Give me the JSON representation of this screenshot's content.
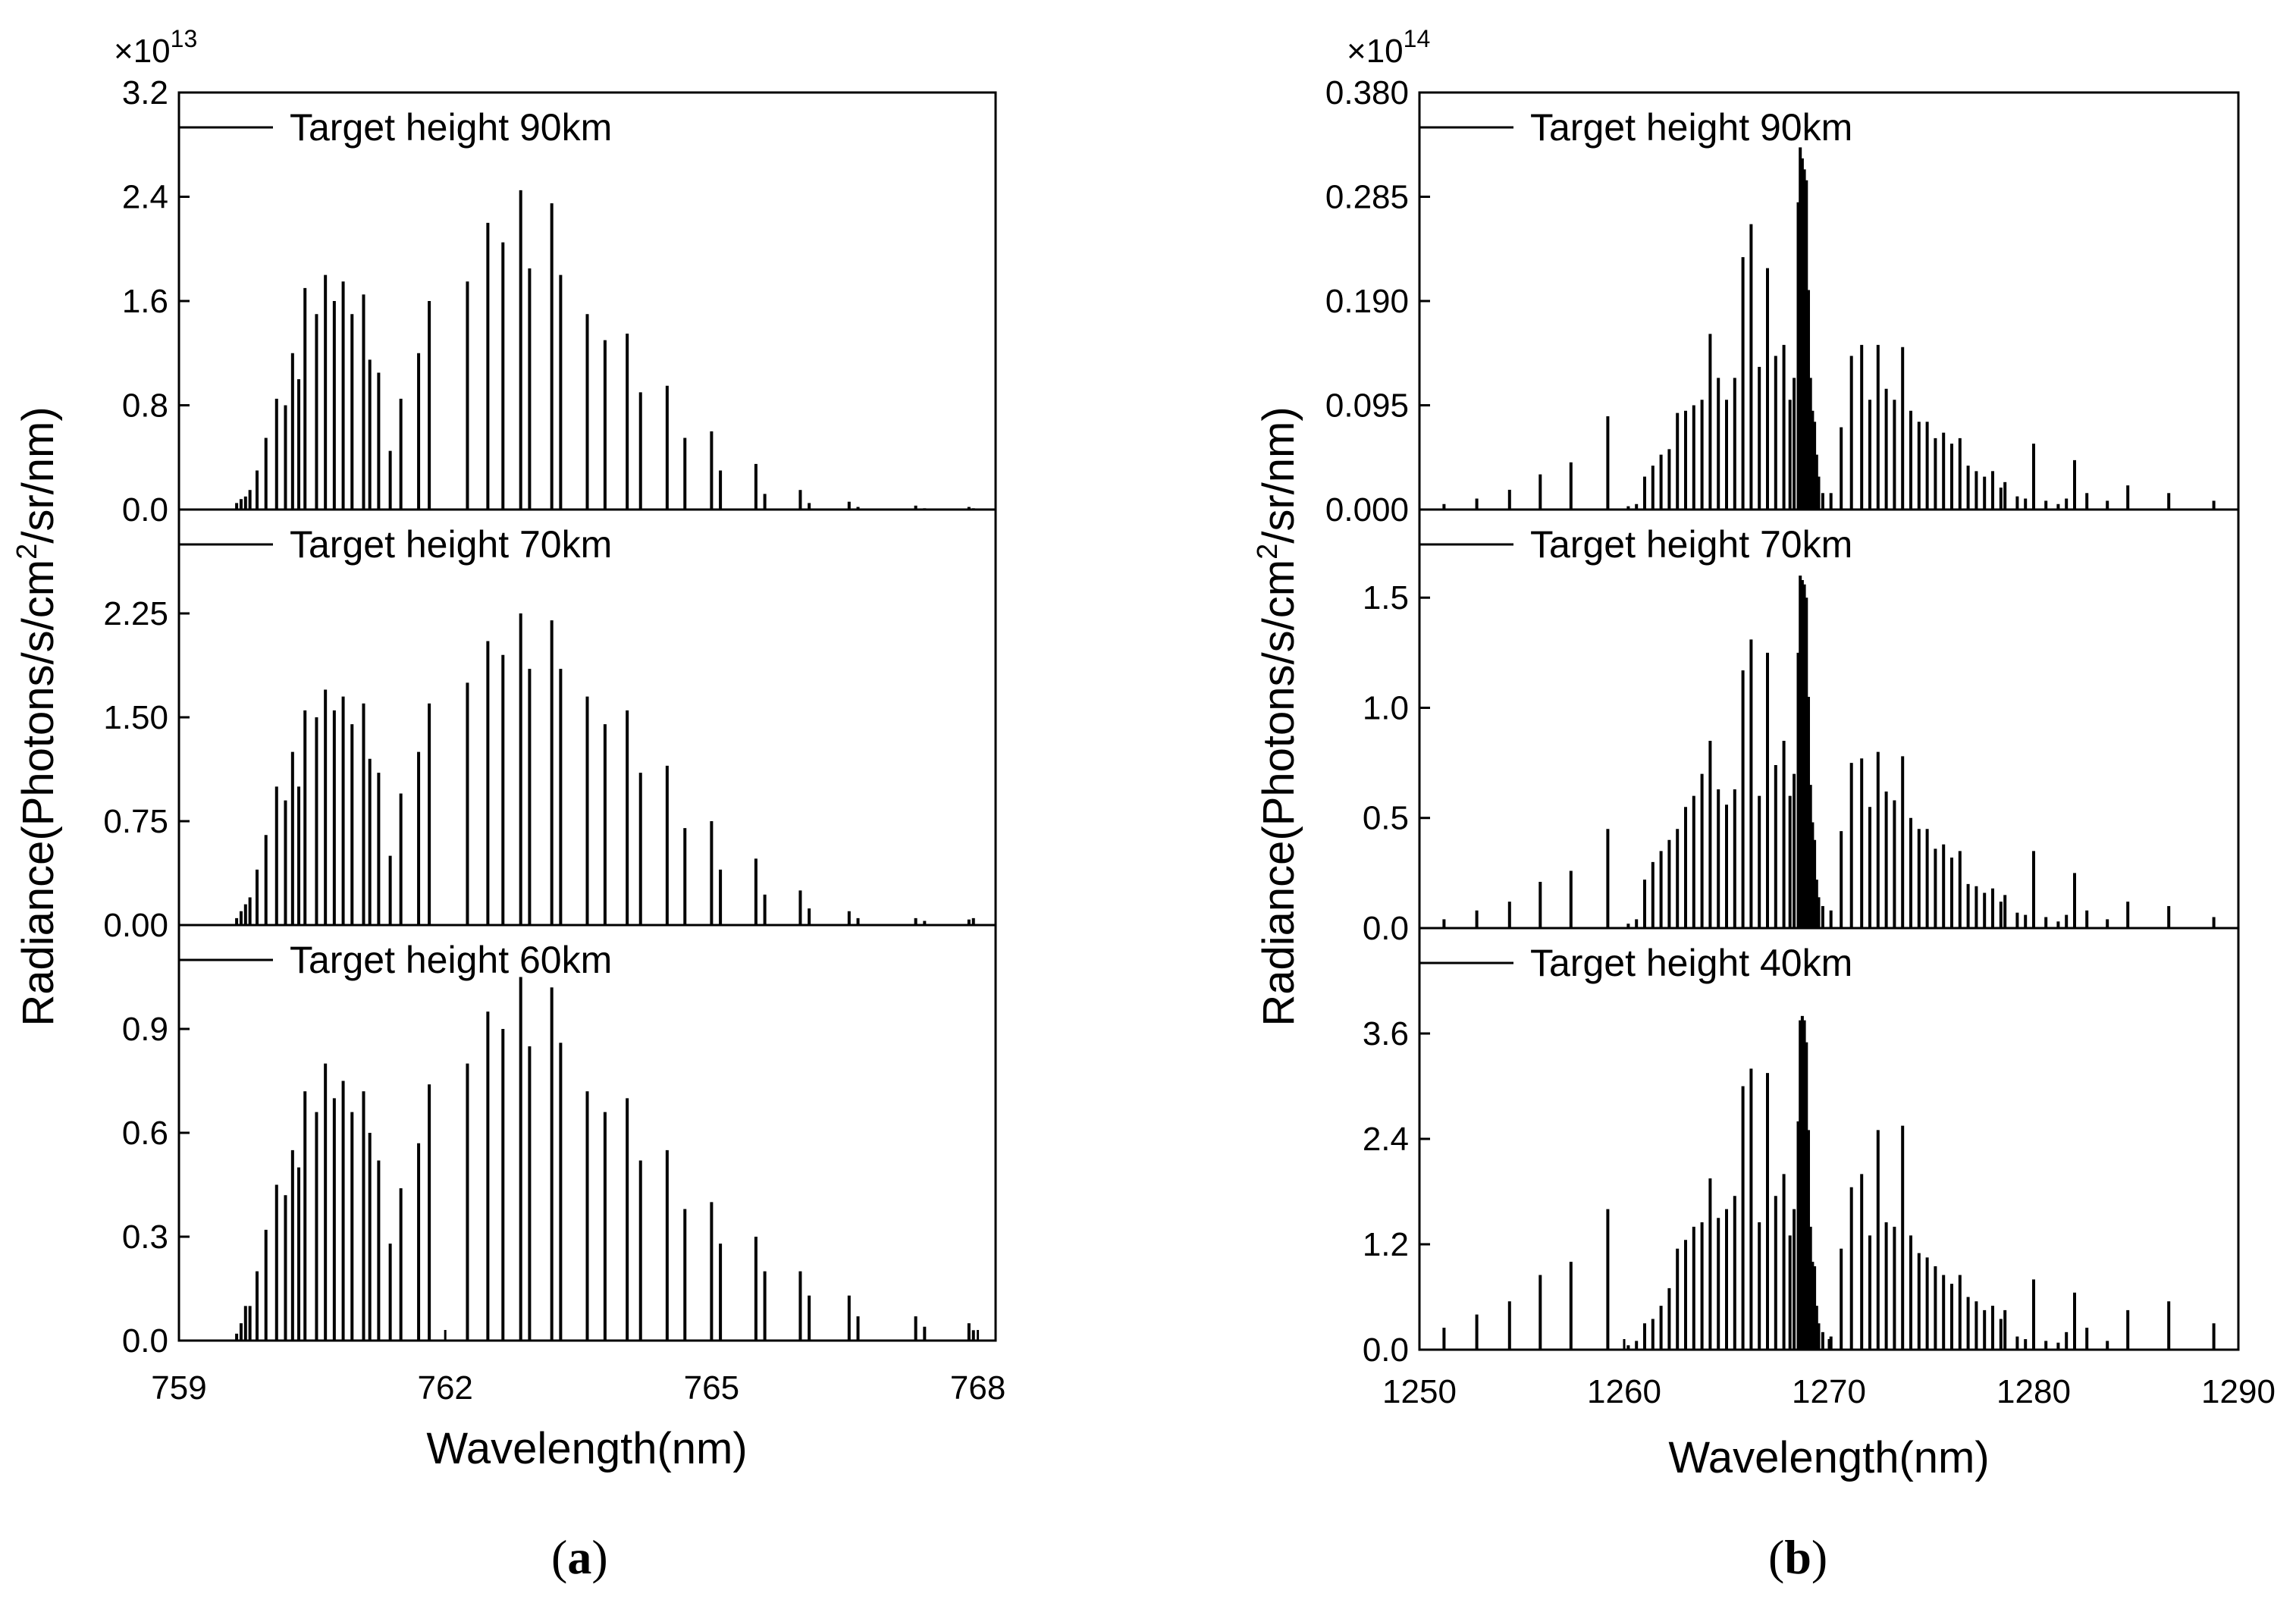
{
  "chart_data": [
    {
      "type": "bar",
      "panel_label": "(a)",
      "panel_letter": "a",
      "xlabel": "Wavelength(nm)",
      "ylabel": "Radiance(Photons/s/cm²/sr/nm)",
      "xlim": [
        759,
        768.2
      ],
      "xticks": [
        759,
        762,
        765,
        768
      ],
      "xtick_labels": [
        "759",
        "762",
        "765",
        "768"
      ],
      "scale_label": "×10",
      "scale_exponent": "13",
      "legend_position": "top-left",
      "line_x": [
        759.65,
        759.7,
        759.75,
        759.8,
        759.88,
        759.98,
        760.1,
        760.2,
        760.28,
        760.35,
        760.42,
        760.55,
        760.65,
        760.75,
        760.85,
        760.95,
        761.08,
        761.15,
        761.25,
        761.38,
        761.5,
        761.7,
        761.82,
        762.25,
        762.48,
        762.65,
        762.85,
        762.95,
        763.2,
        763.3,
        763.6,
        763.8,
        764.05,
        764.2,
        764.5,
        764.7,
        765.0,
        765.1,
        765.5,
        765.6,
        766.0,
        766.1,
        766.55,
        766.65,
        767.3,
        767.4,
        767.9,
        767.95
      ],
      "series": [
        {
          "name": "Target height 90km",
          "ylim": [
            0,
            3.2
          ],
          "yticks": [
            0,
            0.8,
            1.6,
            2.4,
            3.2
          ],
          "ytick_labels": [
            "0.0",
            "0.8",
            "1.6",
            "2.4",
            "3.2"
          ],
          "values": [
            0.05,
            0.08,
            0.1,
            0.15,
            0.3,
            0.55,
            0.85,
            0.8,
            1.2,
            1.0,
            1.7,
            1.5,
            1.8,
            1.6,
            1.75,
            1.5,
            1.65,
            1.15,
            1.05,
            0.45,
            0.85,
            1.2,
            1.6,
            1.75,
            2.2,
            2.05,
            2.45,
            1.85,
            2.35,
            1.8,
            1.5,
            1.3,
            1.35,
            0.9,
            0.95,
            0.55,
            0.6,
            0.3,
            0.35,
            0.12,
            0.15,
            0.05,
            0.06,
            0.02,
            0.03,
            0.01,
            0.02,
            0.01
          ]
        },
        {
          "name": "Target height 70km",
          "ylim": [
            0,
            3.0
          ],
          "yticks": [
            0,
            0.75,
            1.5,
            2.25
          ],
          "ytick_labels": [
            "0.00",
            "0.75",
            "1.50",
            "2.25"
          ],
          "values": [
            0.05,
            0.1,
            0.15,
            0.2,
            0.4,
            0.65,
            1.0,
            0.9,
            1.25,
            1.0,
            1.55,
            1.5,
            1.7,
            1.55,
            1.65,
            1.45,
            1.6,
            1.2,
            1.1,
            0.5,
            0.95,
            1.25,
            1.6,
            1.75,
            2.05,
            1.95,
            2.25,
            1.85,
            2.2,
            1.85,
            1.65,
            1.45,
            1.55,
            1.1,
            1.15,
            0.7,
            0.75,
            0.4,
            0.48,
            0.22,
            0.25,
            0.12,
            0.1,
            0.05,
            0.05,
            0.03,
            0.04,
            0.05
          ]
        },
        {
          "name": "Target height 60km",
          "ylim": [
            0,
            1.2
          ],
          "yticks": [
            0,
            0.3,
            0.6,
            0.9
          ],
          "ytick_labels": [
            "0.0",
            "0.3",
            "0.6",
            "0.9"
          ],
          "values": [
            0.02,
            0.05,
            0.1,
            0.1,
            0.2,
            0.32,
            0.45,
            0.42,
            0.55,
            0.5,
            0.72,
            0.66,
            0.8,
            0.7,
            0.75,
            0.66,
            0.72,
            0.6,
            0.52,
            0.28,
            0.44,
            0.57,
            0.74,
            0.8,
            0.95,
            0.9,
            1.05,
            0.85,
            1.02,
            0.86,
            0.72,
            0.66,
            0.7,
            0.52,
            0.55,
            0.38,
            0.4,
            0.28,
            0.3,
            0.2,
            0.2,
            0.13,
            0.13,
            0.07,
            0.07,
            0.04,
            0.05,
            0.03
          ]
        }
      ]
    },
    {
      "type": "bar",
      "panel_label": "(b)",
      "panel_letter": "b",
      "xlabel": "Wavelength(nm)",
      "ylabel": "Radiance(Photons/s/cm²/sr/nm)",
      "xlim": [
        1250,
        1290
      ],
      "xticks": [
        1250,
        1260,
        1270,
        1280,
        1290
      ],
      "xtick_labels": [
        "1250",
        "1260",
        "1270",
        "1280",
        "1290"
      ],
      "scale_label": "×10",
      "scale_exponent": "14",
      "legend_position": "top-left",
      "line_x": [
        1251.2,
        1252.8,
        1254.4,
        1255.9,
        1257.4,
        1259.2,
        1260.2,
        1260.6,
        1261.0,
        1261.4,
        1261.8,
        1262.2,
        1262.6,
        1263.0,
        1263.4,
        1263.8,
        1264.2,
        1264.6,
        1265.0,
        1265.4,
        1265.8,
        1266.2,
        1266.6,
        1267.0,
        1267.4,
        1267.8,
        1268.1,
        1268.3,
        1268.5,
        1268.6,
        1268.7,
        1268.8,
        1268.9,
        1269.0,
        1269.1,
        1269.2,
        1269.3,
        1269.4,
        1269.5,
        1269.7,
        1270.1,
        1270.6,
        1271.1,
        1271.6,
        1272.0,
        1272.4,
        1272.8,
        1273.2,
        1273.6,
        1274.0,
        1274.4,
        1274.8,
        1275.2,
        1275.6,
        1276.0,
        1276.4,
        1276.8,
        1277.2,
        1277.6,
        1278.0,
        1278.4,
        1278.6,
        1279.2,
        1279.6,
        1280.0,
        1280.6,
        1281.2,
        1281.6,
        1282.0,
        1282.6,
        1283.6,
        1284.6,
        1286.6,
        1288.8
      ],
      "series": [
        {
          "name": "Target height 90km",
          "ylim": [
            0,
            0.38
          ],
          "yticks": [
            0,
            0.095,
            0.19,
            0.285,
            0.38
          ],
          "ytick_labels": [
            "0.000",
            "0.095",
            "0.190",
            "0.285",
            "0.380"
          ],
          "values": [
            0.005,
            0.01,
            0.018,
            0.032,
            0.043,
            0.085,
            0.003,
            0.005,
            0.03,
            0.04,
            0.05,
            0.055,
            0.088,
            0.09,
            0.095,
            0.1,
            0.16,
            0.12,
            0.1,
            0.12,
            0.23,
            0.26,
            0.13,
            0.22,
            0.14,
            0.15,
            0.1,
            0.12,
            0.28,
            0.33,
            0.32,
            0.31,
            0.3,
            0.2,
            0.12,
            0.09,
            0.08,
            0.05,
            0.03,
            0.015,
            0.015,
            0.075,
            0.14,
            0.15,
            0.1,
            0.15,
            0.11,
            0.1,
            0.148,
            0.09,
            0.08,
            0.08,
            0.065,
            0.07,
            0.06,
            0.065,
            0.04,
            0.035,
            0.03,
            0.035,
            0.02,
            0.025,
            0.012,
            0.01,
            0.06,
            0.008,
            0.005,
            0.01,
            0.045,
            0.015,
            0.008,
            0.022,
            0.015,
            0.008
          ]
        },
        {
          "name": "Target height 70km",
          "ylim": [
            0,
            1.9
          ],
          "yticks": [
            0,
            0.5,
            1.0,
            1.5
          ],
          "ytick_labels": [
            "0.0",
            "0.5",
            "1.0",
            "1.5"
          ],
          "values": [
            0.04,
            0.08,
            0.12,
            0.21,
            0.26,
            0.45,
            0.02,
            0.04,
            0.22,
            0.3,
            0.35,
            0.4,
            0.45,
            0.55,
            0.6,
            0.7,
            0.85,
            0.63,
            0.56,
            0.63,
            1.17,
            1.31,
            0.6,
            1.25,
            0.74,
            0.85,
            0.6,
            0.7,
            1.25,
            1.6,
            1.58,
            1.56,
            1.5,
            1.05,
            0.65,
            0.48,
            0.4,
            0.22,
            0.14,
            0.1,
            0.08,
            0.44,
            0.75,
            0.77,
            0.55,
            0.8,
            0.62,
            0.58,
            0.78,
            0.5,
            0.45,
            0.45,
            0.36,
            0.38,
            0.32,
            0.35,
            0.2,
            0.19,
            0.16,
            0.18,
            0.12,
            0.15,
            0.07,
            0.06,
            0.35,
            0.05,
            0.03,
            0.06,
            0.25,
            0.08,
            0.04,
            0.12,
            0.1,
            0.05
          ]
        },
        {
          "name": "Target height 40km",
          "ylim": [
            0,
            4.8
          ],
          "yticks": [
            0,
            1.2,
            2.4,
            3.6
          ],
          "ytick_labels": [
            "0.0",
            "1.2",
            "2.4",
            "3.6"
          ],
          "values": [
            0.25,
            0.4,
            0.55,
            0.85,
            1.0,
            1.6,
            0.05,
            0.1,
            0.3,
            0.35,
            0.5,
            0.7,
            1.15,
            1.25,
            1.4,
            1.45,
            1.95,
            1.5,
            1.6,
            1.75,
            3.0,
            3.2,
            1.45,
            3.15,
            1.75,
            2.0,
            1.3,
            1.6,
            2.6,
            3.75,
            3.8,
            3.75,
            3.5,
            2.5,
            1.4,
            1.0,
            0.95,
            0.5,
            0.3,
            0.2,
            0.15,
            1.15,
            1.85,
            2.0,
            1.3,
            2.5,
            1.45,
            1.4,
            2.55,
            1.3,
            1.1,
            1.05,
            0.95,
            0.85,
            0.75,
            0.85,
            0.6,
            0.55,
            0.45,
            0.5,
            0.35,
            0.45,
            0.15,
            0.12,
            0.8,
            0.1,
            0.08,
            0.2,
            0.65,
            0.25,
            0.1,
            0.45,
            0.55,
            0.3
          ]
        }
      ]
    }
  ]
}
